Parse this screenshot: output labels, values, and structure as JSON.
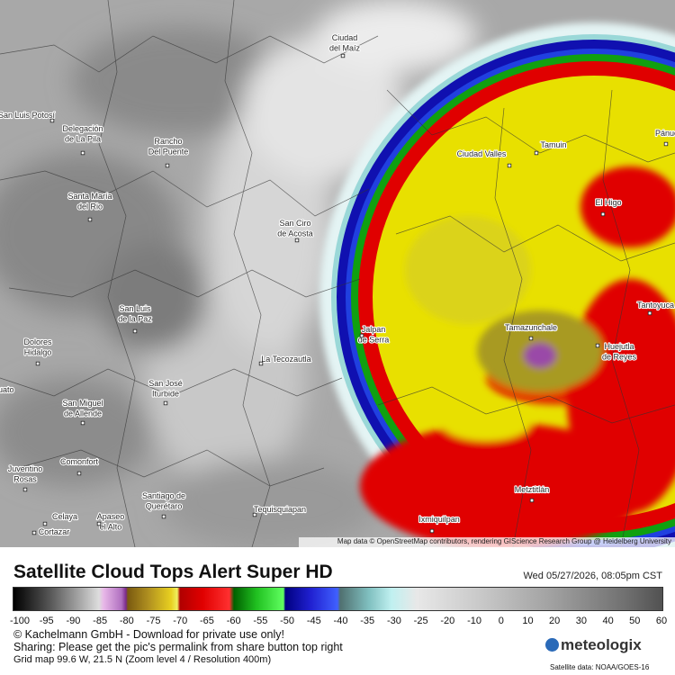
{
  "map": {
    "labels": [
      [
        "Ciudad",
        "del Maíz"
      ],
      [
        "San Luis Potosí"
      ],
      [
        "Delegación",
        "de La Pila"
      ],
      [
        "Rancho",
        "Del Puente"
      ],
      [
        "Santa María",
        "del Rio"
      ],
      [
        "Ciudad Valles"
      ],
      [
        "Tamuin"
      ],
      [
        "Pánuco"
      ],
      [
        "El Higo"
      ],
      [
        "San Ciro",
        "de Acosta"
      ],
      [
        "San Luis",
        "de la Paz"
      ],
      [
        "Tantoyuca"
      ],
      [
        "Tamazunchale"
      ],
      [
        "Jalpan",
        "de Serra"
      ],
      [
        "Huejutla",
        "de Reyes"
      ],
      [
        "Dolores",
        "Hidalgo"
      ],
      [
        "La Tecozautla"
      ],
      [
        "San José",
        "Iturbide"
      ],
      [
        "uato"
      ],
      [
        "San Miguel",
        "de Allende"
      ],
      [
        "Comonfort"
      ],
      [
        "Juventino",
        "Rosas"
      ],
      [
        "Santiago de",
        "Querétaro"
      ],
      [
        "Tequisquiapan"
      ],
      [
        "Metztitlán"
      ],
      [
        "Celaya"
      ],
      [
        "Apaseo",
        "el Alto"
      ],
      [
        "Cortazar"
      ],
      [
        "Ixmiquilpan"
      ]
    ],
    "attribution": "Map data © OpenStreetMap contributors, rendering GIScience Research Group @ Heidelberg University"
  },
  "header": {
    "title": "Satellite Cloud Tops Alert Super HD",
    "timestamp": "Wed 05/27/2026, 08:05pm CST"
  },
  "colorbar": {
    "ticks": [
      -100,
      -95,
      -90,
      -85,
      -80,
      -75,
      -70,
      -65,
      -60,
      -55,
      -50,
      -45,
      -40,
      -35,
      -30,
      -25,
      -20,
      -10,
      0,
      10,
      20,
      30,
      40,
      50,
      60
    ]
  },
  "footer": {
    "lines": [
      "© Kachelmann GmbH - Download for private use only!",
      "Sharing: Please get the pic's permalink from share button top right",
      "Grid map 99.6 W, 21.5 N (Zoom level 4 / Resolution 400m)"
    ],
    "logo": "meteologix",
    "source": "Satellite data: NOAA/GOES-16"
  }
}
